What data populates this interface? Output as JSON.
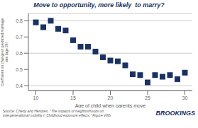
{
  "chart_data": {
    "type": "scatter",
    "title": "Move to opportunity, more likely  to marry?",
    "xlabel": "Age of child when parents move",
    "ylabel": "Coefficient on change in predicted marriage\nrate (age 26)",
    "annotations": [
      "Source: Chetty and Hendren, \"The impacts of neighborhoods on\nintergenerational mobility I: Childhood exposure effects,\" Figure VIIIb",
      "BROOKINGS"
    ],
    "x": [
      10,
      11,
      12,
      13,
      14,
      15,
      16,
      17,
      18,
      19,
      20,
      21,
      22,
      23,
      24,
      25,
      26,
      27,
      28,
      29,
      30
    ],
    "values": [
      0.79,
      0.76,
      0.8,
      0.75,
      0.74,
      0.68,
      0.64,
      0.64,
      0.61,
      0.575,
      0.555,
      0.55,
      0.525,
      0.47,
      0.465,
      0.42,
      0.465,
      0.455,
      0.465,
      0.44,
      0.48
    ],
    "color": "#1a3263",
    "marker": "square",
    "xlim": [
      9,
      31
    ],
    "ylim": [
      0.37,
      0.845
    ],
    "xticks": [
      10,
      15,
      20,
      25,
      30
    ],
    "yticks": [
      0.4,
      0.5,
      0.6,
      0.7,
      0.8
    ],
    "grid": true
  }
}
